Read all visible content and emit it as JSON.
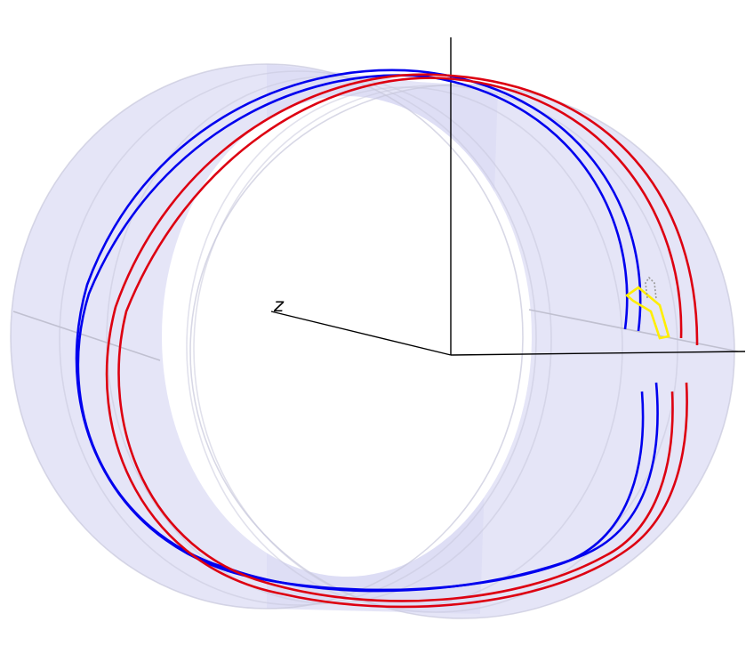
{
  "diagram": {
    "axis_labels": {
      "z": "z"
    },
    "colors": {
      "background": "#ffffff",
      "cylinder_fill": "#dcdcf4",
      "cylinder_edge": "#c8c8dc",
      "axis": "#000000",
      "blue_coil": "#0000ee",
      "red_coil": "#dd0011",
      "highlight": "#ffee00"
    }
  }
}
